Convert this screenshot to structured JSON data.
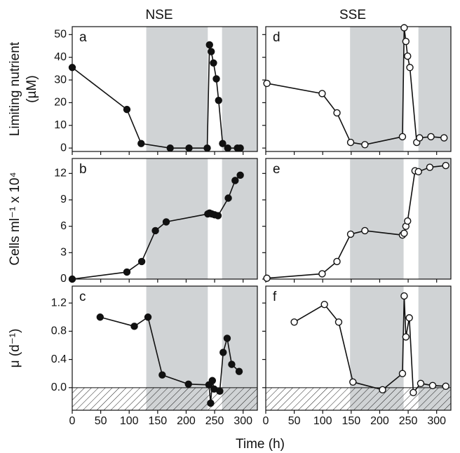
{
  "chart_data": [
    {
      "type": "line",
      "title": "NSE",
      "panel_label": "a",
      "ylabel": [
        "Limiting nutrient",
        "(µM)"
      ],
      "marker": "filled",
      "x": [
        0,
        96,
        121,
        172,
        205,
        237,
        241,
        244,
        248,
        253,
        257,
        264,
        273,
        290,
        295
      ],
      "values": [
        35.5,
        17,
        2,
        0,
        0,
        0,
        45.5,
        42.5,
        37.5,
        30.5,
        21,
        2,
        0,
        0,
        0
      ],
      "xlim": [
        0,
        325
      ],
      "ylim": [
        -1.5,
        53.5
      ],
      "xticks": [
        0,
        50,
        100,
        150,
        200,
        250,
        300
      ],
      "yticks": [
        0,
        10,
        20,
        30,
        40,
        50
      ],
      "show_xtick_labels": false,
      "show_ytick_labels": true,
      "shaded": [
        [
          130,
          238
        ],
        [
          263,
          325
        ]
      ]
    },
    {
      "type": "line",
      "panel_label": "b",
      "ylabel": [
        "Cells ml⁻¹ x 10⁴"
      ],
      "marker": "filled",
      "x": [
        0,
        96,
        122,
        146,
        165,
        238,
        241,
        245,
        250,
        256,
        274,
        286,
        295
      ],
      "values": [
        0,
        0.8,
        2,
        5.5,
        6.5,
        7.4,
        7.5,
        7.4,
        7.3,
        7.2,
        9.2,
        11.2,
        11.8
      ],
      "xlim": [
        0,
        325
      ],
      "ylim": [
        0,
        13.7
      ],
      "xticks": [
        0,
        50,
        100,
        150,
        200,
        250,
        300
      ],
      "yticks": [
        0,
        3,
        6,
        9,
        12
      ],
      "show_xtick_labels": false,
      "show_ytick_labels": true,
      "shaded": [
        [
          130,
          238
        ],
        [
          263,
          325
        ]
      ]
    },
    {
      "type": "line",
      "panel_label": "c",
      "ylabel": [
        "μ (d⁻¹)"
      ],
      "xlabel": "Time (h)",
      "marker": "filled",
      "x": [
        49,
        109,
        133,
        158,
        204,
        240,
        243,
        246,
        249,
        259,
        265,
        272,
        280,
        293
      ],
      "values": [
        1.0,
        0.87,
        1.0,
        0.18,
        0.05,
        0.04,
        -0.22,
        0.1,
        -0.02,
        -0.05,
        0.5,
        0.7,
        0.33,
        0.23
      ],
      "xlim": [
        0,
        325
      ],
      "ylim": [
        -0.32,
        1.44
      ],
      "xticks": [
        0,
        50,
        100,
        150,
        200,
        250,
        300
      ],
      "yticks": [
        {
          "value": 0,
          "label": "0.0"
        },
        {
          "value": 0.4,
          "label": "0.4"
        },
        {
          "value": 0.8,
          "label": "0.8"
        },
        {
          "value": 1.2,
          "label": "1.2"
        }
      ],
      "show_xtick_labels": true,
      "show_ytick_labels": true,
      "shaded": [
        [
          130,
          238
        ],
        [
          263,
          325
        ]
      ],
      "hatch_below": 0
    },
    {
      "type": "line",
      "title": "SSE",
      "panel_label": "d",
      "marker": "open",
      "x": [
        2,
        99,
        125,
        149,
        174,
        240,
        243,
        246,
        249,
        253,
        265,
        270,
        290,
        313
      ],
      "values": [
        28.5,
        24,
        15.5,
        2.5,
        1.5,
        5,
        53,
        47,
        40.5,
        35.5,
        2.5,
        4.5,
        5,
        4.5
      ],
      "xlim": [
        0,
        325
      ],
      "ylim": [
        -1.5,
        53.5
      ],
      "xticks": [
        0,
        50,
        100,
        150,
        200,
        250,
        300
      ],
      "yticks": [
        0,
        10,
        20,
        30,
        40,
        50
      ],
      "show_xtick_labels": false,
      "show_ytick_labels": false,
      "shaded": [
        [
          148,
          242
        ],
        [
          268,
          325
        ]
      ]
    },
    {
      "type": "line",
      "panel_label": "e",
      "marker": "open",
      "x": [
        2,
        99,
        125,
        149,
        174,
        240,
        243,
        246,
        249,
        262,
        268,
        288,
        316
      ],
      "values": [
        0.1,
        0.6,
        2,
        5.1,
        5.5,
        5,
        5.2,
        6,
        6.6,
        12.3,
        12.2,
        12.7,
        12.9
      ],
      "xlim": [
        0,
        325
      ],
      "ylim": [
        0,
        13.7
      ],
      "xticks": [
        0,
        50,
        100,
        150,
        200,
        250,
        300
      ],
      "yticks": [
        0,
        3,
        6,
        9,
        12
      ],
      "show_xtick_labels": false,
      "show_ytick_labels": false,
      "shaded": [
        [
          148,
          242
        ],
        [
          268,
          325
        ]
      ]
    },
    {
      "type": "line",
      "panel_label": "f",
      "marker": "open",
      "x": [
        50,
        103,
        128,
        153,
        205,
        240,
        243,
        246,
        252,
        259,
        272,
        293,
        316
      ],
      "values": [
        0.93,
        1.18,
        0.93,
        0.08,
        -0.03,
        0.2,
        1.3,
        0.72,
        0.99,
        -0.07,
        0.06,
        0.03,
        0.02
      ],
      "xlim": [
        0,
        325
      ],
      "ylim": [
        -0.32,
        1.44
      ],
      "xticks": [
        0,
        50,
        100,
        150,
        200,
        250,
        300
      ],
      "yticks": [
        {
          "value": 0,
          "label": "0.0"
        },
        {
          "value": 0.4,
          "label": "0.4"
        },
        {
          "value": 0.8,
          "label": "0.8"
        },
        {
          "value": 1.2,
          "label": "1.2"
        }
      ],
      "show_xtick_labels": true,
      "show_ytick_labels": false,
      "shaded": [
        [
          148,
          242
        ],
        [
          268,
          325
        ]
      ],
      "hatch_below": 0
    }
  ]
}
